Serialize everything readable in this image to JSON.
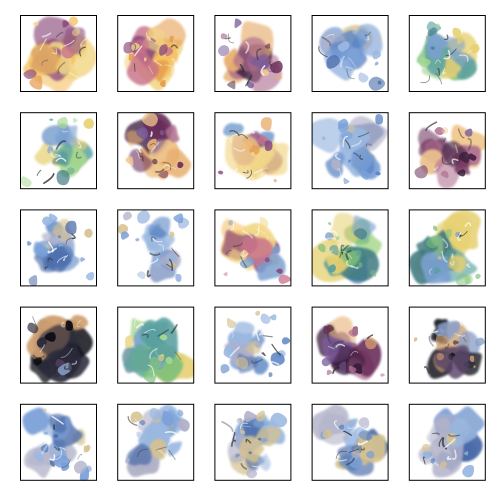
{
  "grid": {
    "rows": 5,
    "cols": 5
  },
  "palettes": {
    "sunset": [
      "#f4c060",
      "#e59a4c",
      "#c9738a",
      "#8a4a7c",
      "#f2d88a",
      "#7aa0d0"
    ],
    "blue": [
      "#7aa0d8",
      "#5c86c4",
      "#9ab8e0",
      "#b0b0c8",
      "#d6c290",
      "#4a6aa8"
    ],
    "green": [
      "#7cc07a",
      "#5aa0a0",
      "#e6d070",
      "#7aa0d0",
      "#a8d890",
      "#3c7880"
    ],
    "purple": [
      "#3a1e3c",
      "#6a2e5a",
      "#b07090",
      "#e8b070",
      "#f0c890",
      "#7a5c9a"
    ],
    "dark": [
      "#0a0a12",
      "#1e1428",
      "#5a4468",
      "#8aa0c8",
      "#d0a070",
      "#2a2a3a"
    ]
  },
  "tiles": [
    {
      "palette": "sunset",
      "seed": 11,
      "density": 0.65
    },
    {
      "palette": "sunset",
      "seed": 12,
      "density": 0.7
    },
    {
      "palette": "purple",
      "seed": 13,
      "density": 0.6
    },
    {
      "palette": "blue",
      "seed": 14,
      "density": 0.55
    },
    {
      "palette": "green",
      "seed": 15,
      "density": 0.68
    },
    {
      "palette": "green",
      "seed": 21,
      "density": 0.62
    },
    {
      "palette": "purple",
      "seed": 22,
      "density": 0.58
    },
    {
      "palette": "sunset",
      "seed": 23,
      "density": 0.6
    },
    {
      "palette": "blue",
      "seed": 24,
      "density": 0.45
    },
    {
      "palette": "purple",
      "seed": 25,
      "density": 0.62
    },
    {
      "palette": "blue",
      "seed": 31,
      "density": 0.55
    },
    {
      "palette": "blue",
      "seed": 32,
      "density": 0.38
    },
    {
      "palette": "sunset",
      "seed": 33,
      "density": 0.65
    },
    {
      "palette": "green",
      "seed": 34,
      "density": 0.58
    },
    {
      "palette": "green",
      "seed": 35,
      "density": 0.66
    },
    {
      "palette": "dark",
      "seed": 41,
      "density": 0.62
    },
    {
      "palette": "green",
      "seed": 42,
      "density": 0.72
    },
    {
      "palette": "blue",
      "seed": 43,
      "density": 0.35
    },
    {
      "palette": "purple",
      "seed": 44,
      "density": 0.45
    },
    {
      "palette": "dark",
      "seed": 45,
      "density": 0.4
    },
    {
      "palette": "blue",
      "seed": 51,
      "density": 0.3
    },
    {
      "palette": "blue",
      "seed": 52,
      "density": 0.5
    },
    {
      "palette": "blue",
      "seed": 53,
      "density": 0.4
    },
    {
      "palette": "blue",
      "seed": 54,
      "density": 0.45
    },
    {
      "palette": "blue",
      "seed": 55,
      "density": 0.58
    }
  ]
}
